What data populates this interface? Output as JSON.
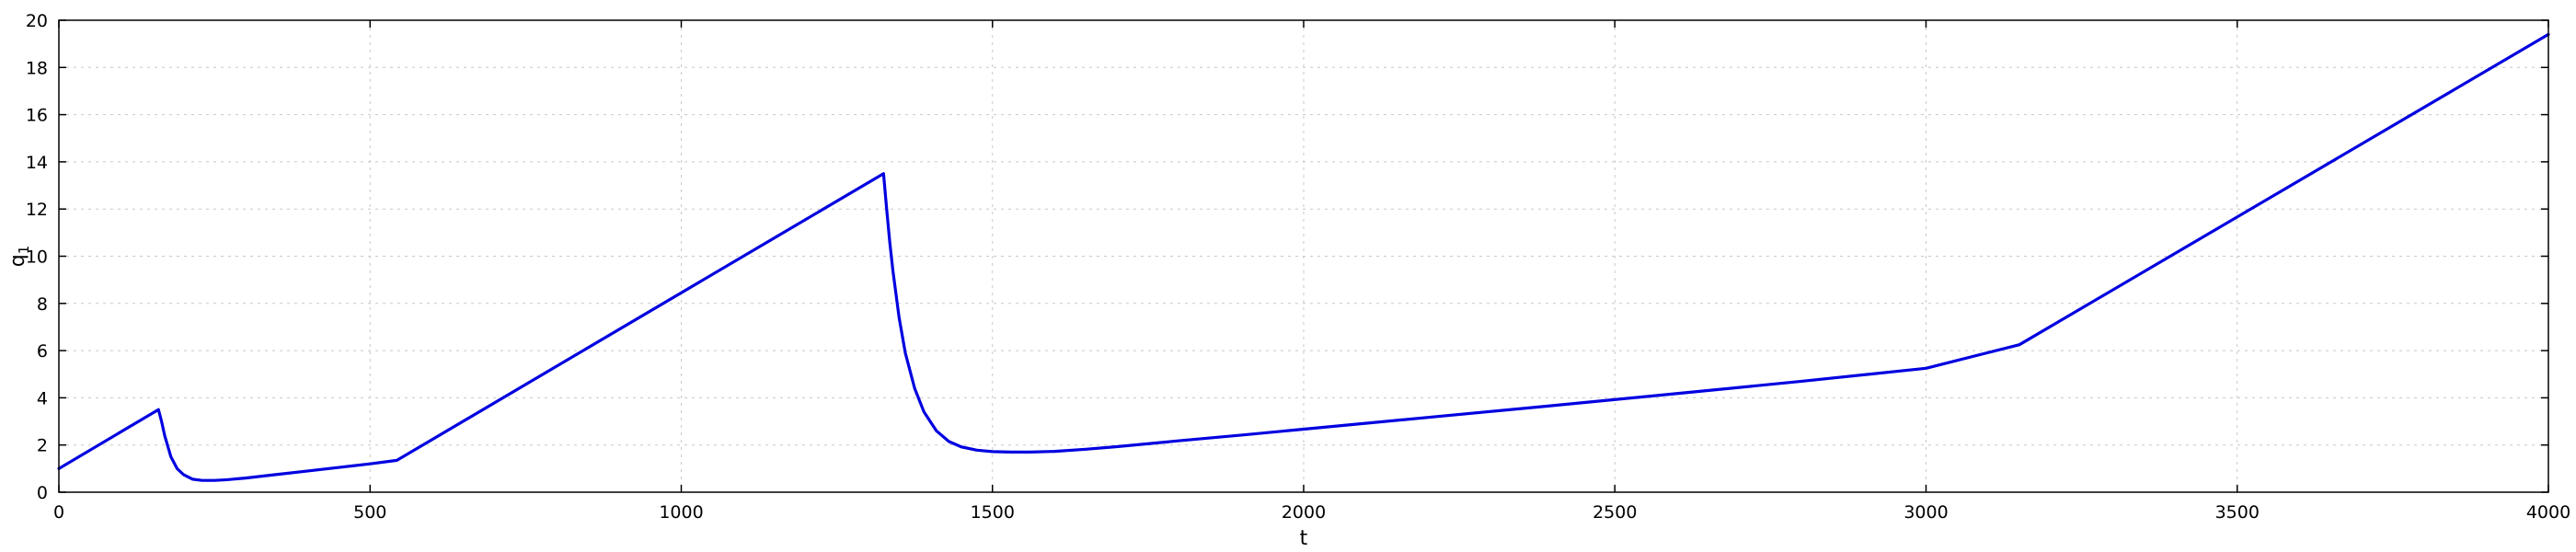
{
  "chart_data": {
    "type": "line",
    "title": "",
    "xlabel": "t",
    "ylabel": "q",
    "ylabel_subscript": "1",
    "xlim": [
      0,
      4000
    ],
    "ylim": [
      0,
      20
    ],
    "xticks": [
      0,
      500,
      1000,
      1500,
      2000,
      2500,
      3000,
      3500,
      4000
    ],
    "yticks": [
      0,
      2,
      4,
      6,
      8,
      10,
      12,
      14,
      16,
      18,
      20
    ],
    "grid": true,
    "legend": "none",
    "series": [
      {
        "color": "#0000e0",
        "x": [
          0,
          160,
          165,
          170,
          180,
          190,
          200,
          215,
          230,
          250,
          270,
          300,
          350,
          400,
          450,
          500,
          543,
          1325,
          1330,
          1335,
          1340,
          1350,
          1360,
          1375,
          1390,
          1410,
          1430,
          1450,
          1475,
          1500,
          1530,
          1560,
          1600,
          1650,
          1700,
          1800,
          1900,
          2000,
          2200,
          2400,
          2600,
          2800,
          3000,
          3150,
          4000
        ],
        "y": [
          1.0,
          3.5,
          3.0,
          2.4,
          1.5,
          1.0,
          0.75,
          0.55,
          0.5,
          0.5,
          0.53,
          0.6,
          0.75,
          0.9,
          1.05,
          1.2,
          1.35,
          13.5,
          12.0,
          10.6,
          9.4,
          7.4,
          5.9,
          4.4,
          3.4,
          2.6,
          2.15,
          1.92,
          1.78,
          1.72,
          1.7,
          1.7,
          1.73,
          1.82,
          1.93,
          2.18,
          2.42,
          2.67,
          3.17,
          3.67,
          4.18,
          4.7,
          5.25,
          6.25,
          19.4
        ]
      }
    ]
  }
}
